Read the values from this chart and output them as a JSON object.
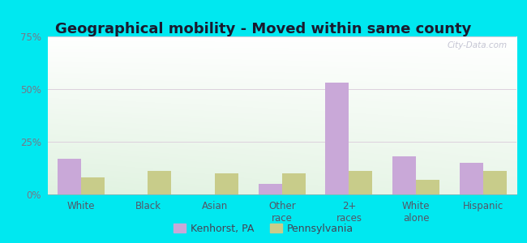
{
  "title": "Geographical mobility - Moved within same county",
  "categories": [
    "White",
    "Black",
    "Asian",
    "Other\nrace",
    "2+\nraces",
    "White\nalone",
    "Hispanic"
  ],
  "kenhorst_values": [
    17,
    0,
    0,
    5,
    53,
    18,
    15
  ],
  "pennsylvania_values": [
    8,
    11,
    10,
    10,
    11,
    7,
    11
  ],
  "kenhorst_color": "#c9a8d8",
  "pennsylvania_color": "#c8cc8a",
  "background_outer": "#00e8f0",
  "ylim": [
    0,
    75
  ],
  "yticks": [
    0,
    25,
    50,
    75
  ],
  "ytick_labels": [
    "0%",
    "25%",
    "50%",
    "75%"
  ],
  "bar_width": 0.35,
  "legend_labels": [
    "Kenhorst, PA",
    "Pennsylvania"
  ],
  "watermark": "City-Data.com",
  "title_fontsize": 13,
  "tick_fontsize": 8.5,
  "plot_bg_top": "#ffffff",
  "plot_bg_bottom_left": "#d4eac8",
  "plot_bg_bottom_right": "#e8f4e0"
}
